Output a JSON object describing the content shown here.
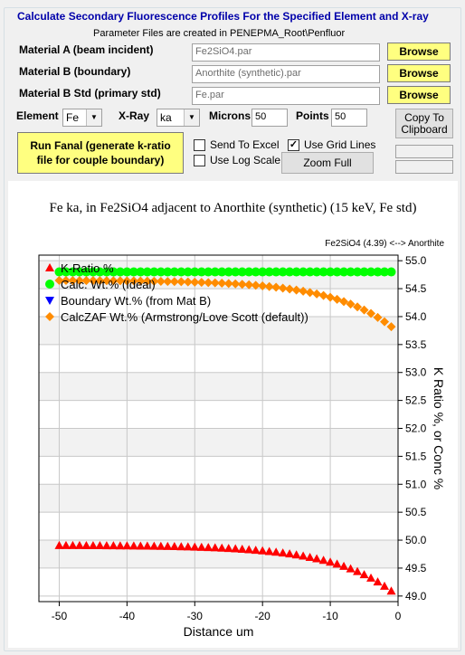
{
  "window": {
    "title": "Calculate Secondary Fluorescence Profiles For the Specified Element and X-ray",
    "note": "Parameter Files are created in PENEPMA_Root\\Penfluor"
  },
  "materials": {
    "a_label": "Material A (beam incident)",
    "a_value": "Fe2SiO4.par",
    "b_label": "Material B (boundary)",
    "b_value": "Anorthite (synthetic).par",
    "std_label": "Material B Std (primary std)",
    "std_value": "Fe.par",
    "browse_label": "Browse"
  },
  "params": {
    "element_label": "Element",
    "element_value": "Fe",
    "xray_label": "X-Ray",
    "xray_value": "ka",
    "microns_label": "Microns",
    "microns_value": "50",
    "points_label": "Points",
    "points_value": "50"
  },
  "actions": {
    "copy_label_1": "Copy To",
    "copy_label_2": "Clipboard",
    "run_label_1": "Run Fanal (generate k-ratio",
    "run_label_2": "file for couple boundary)",
    "send_excel": "Send To Excel",
    "use_grid": "Use Grid Lines",
    "use_log": "Use Log Scale",
    "zoom_full": "Zoom Full",
    "grid_checked": true
  },
  "chart_data": {
    "type": "scatter",
    "title": "Fe ka, in Fe2SiO4 adjacent to Anorthite (synthetic) (15 keV, Fe std)",
    "subtitle": "Fe2SiO4 (4.39) <--> Anorthite",
    "xlabel": "Distance um",
    "ylabel": "K Ratio %, or Conc %",
    "xlim": [
      -53,
      0
    ],
    "ylim": [
      48.9,
      55.1
    ],
    "xticks": [
      -50,
      -40,
      -30,
      -20,
      -10,
      0
    ],
    "yticks": [
      49.0,
      49.5,
      50.0,
      50.5,
      51.0,
      51.5,
      52.0,
      52.5,
      53.0,
      53.5,
      54.0,
      54.5,
      55.0
    ],
    "grid": true,
    "legend_position": "top-left",
    "series": [
      {
        "name": "K-Ratio %",
        "color": "#ff0000",
        "marker": "triangle-up",
        "x0": -50,
        "x1": -1,
        "y_far": 49.91,
        "y_edge": 49.09
      },
      {
        "name": "Calc. Wt.% (Ideal)",
        "color": "#00ff00",
        "marker": "circle",
        "x0": -50,
        "x1": -1,
        "y_far": 54.8,
        "y_edge": 54.8
      },
      {
        "name": "Boundary Wt.% (from Mat B)",
        "color": "#0000ff",
        "marker": "triangle-down",
        "x0": null,
        "x1": null,
        "y_far": null,
        "y_edge": null
      },
      {
        "name": "CalcZAF Wt.% (Armstrong/Love Scott (default))",
        "color": "#ff8c00",
        "marker": "diamond",
        "x0": -50,
        "x1": -1,
        "y_far": 54.65,
        "y_edge": 53.82
      }
    ]
  }
}
